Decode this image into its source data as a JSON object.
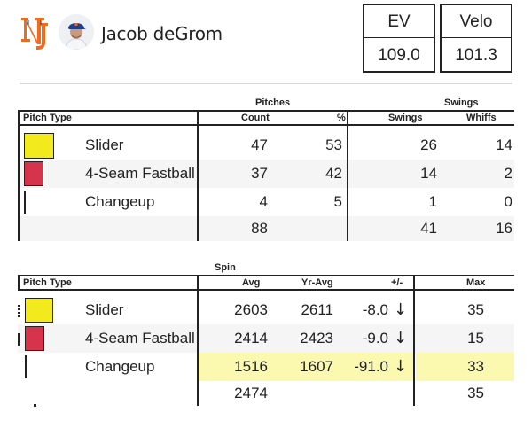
{
  "header": {
    "player_name": "Jacob deGrom",
    "team_logo": "mets-logo",
    "stats": [
      {
        "label": "EV",
        "value": "109.0"
      },
      {
        "label": "Velo",
        "value": "101.3"
      }
    ]
  },
  "pitches_table": {
    "group_labels": {
      "pitches": "Pitches",
      "swings": "Swings"
    },
    "columns": {
      "pitch_type": "Pitch Type",
      "count": "Count",
      "pct": "%",
      "swings": "Swings",
      "whiffs": "Whiffs"
    },
    "rows": [
      {
        "pitch": "Slider",
        "color": "#f2ea1c",
        "count": "47",
        "pct": "53",
        "swings": "26",
        "whiffs": "14"
      },
      {
        "pitch": "4-Seam Fastball",
        "color": "#d5344c",
        "count": "37",
        "pct": "42",
        "swings": "14",
        "whiffs": "2"
      },
      {
        "pitch": "Changeup",
        "color": "",
        "count": "4",
        "pct": "5",
        "swings": "1",
        "whiffs": "0"
      }
    ],
    "totals": {
      "count": "88",
      "swings": "41",
      "whiffs": "16"
    }
  },
  "spin_table": {
    "group_labels": {
      "spin": "Spin"
    },
    "columns": {
      "pitch_type": "Pitch Type",
      "avg": "Avg",
      "yr_avg": "Yr-Avg",
      "diff": "+/-",
      "max": "Max"
    },
    "rows": [
      {
        "pitch": "Slider",
        "color": "#f2ea1c",
        "avg": "2603",
        "yr_avg": "2611",
        "diff": "-8.0",
        "arrow": "↓",
        "max": "35"
      },
      {
        "pitch": "4-Seam Fastball",
        "color": "#d5344c",
        "avg": "2414",
        "yr_avg": "2423",
        "diff": "-9.0",
        "arrow": "↓",
        "max": "15"
      },
      {
        "pitch": "Changeup",
        "color": "",
        "avg": "1516",
        "yr_avg": "1607",
        "diff": "-91.0",
        "arrow": "↓",
        "max": "33"
      }
    ],
    "totals": {
      "avg": "2474",
      "max": "35"
    },
    "highlight_color": "#fbf8b0"
  }
}
